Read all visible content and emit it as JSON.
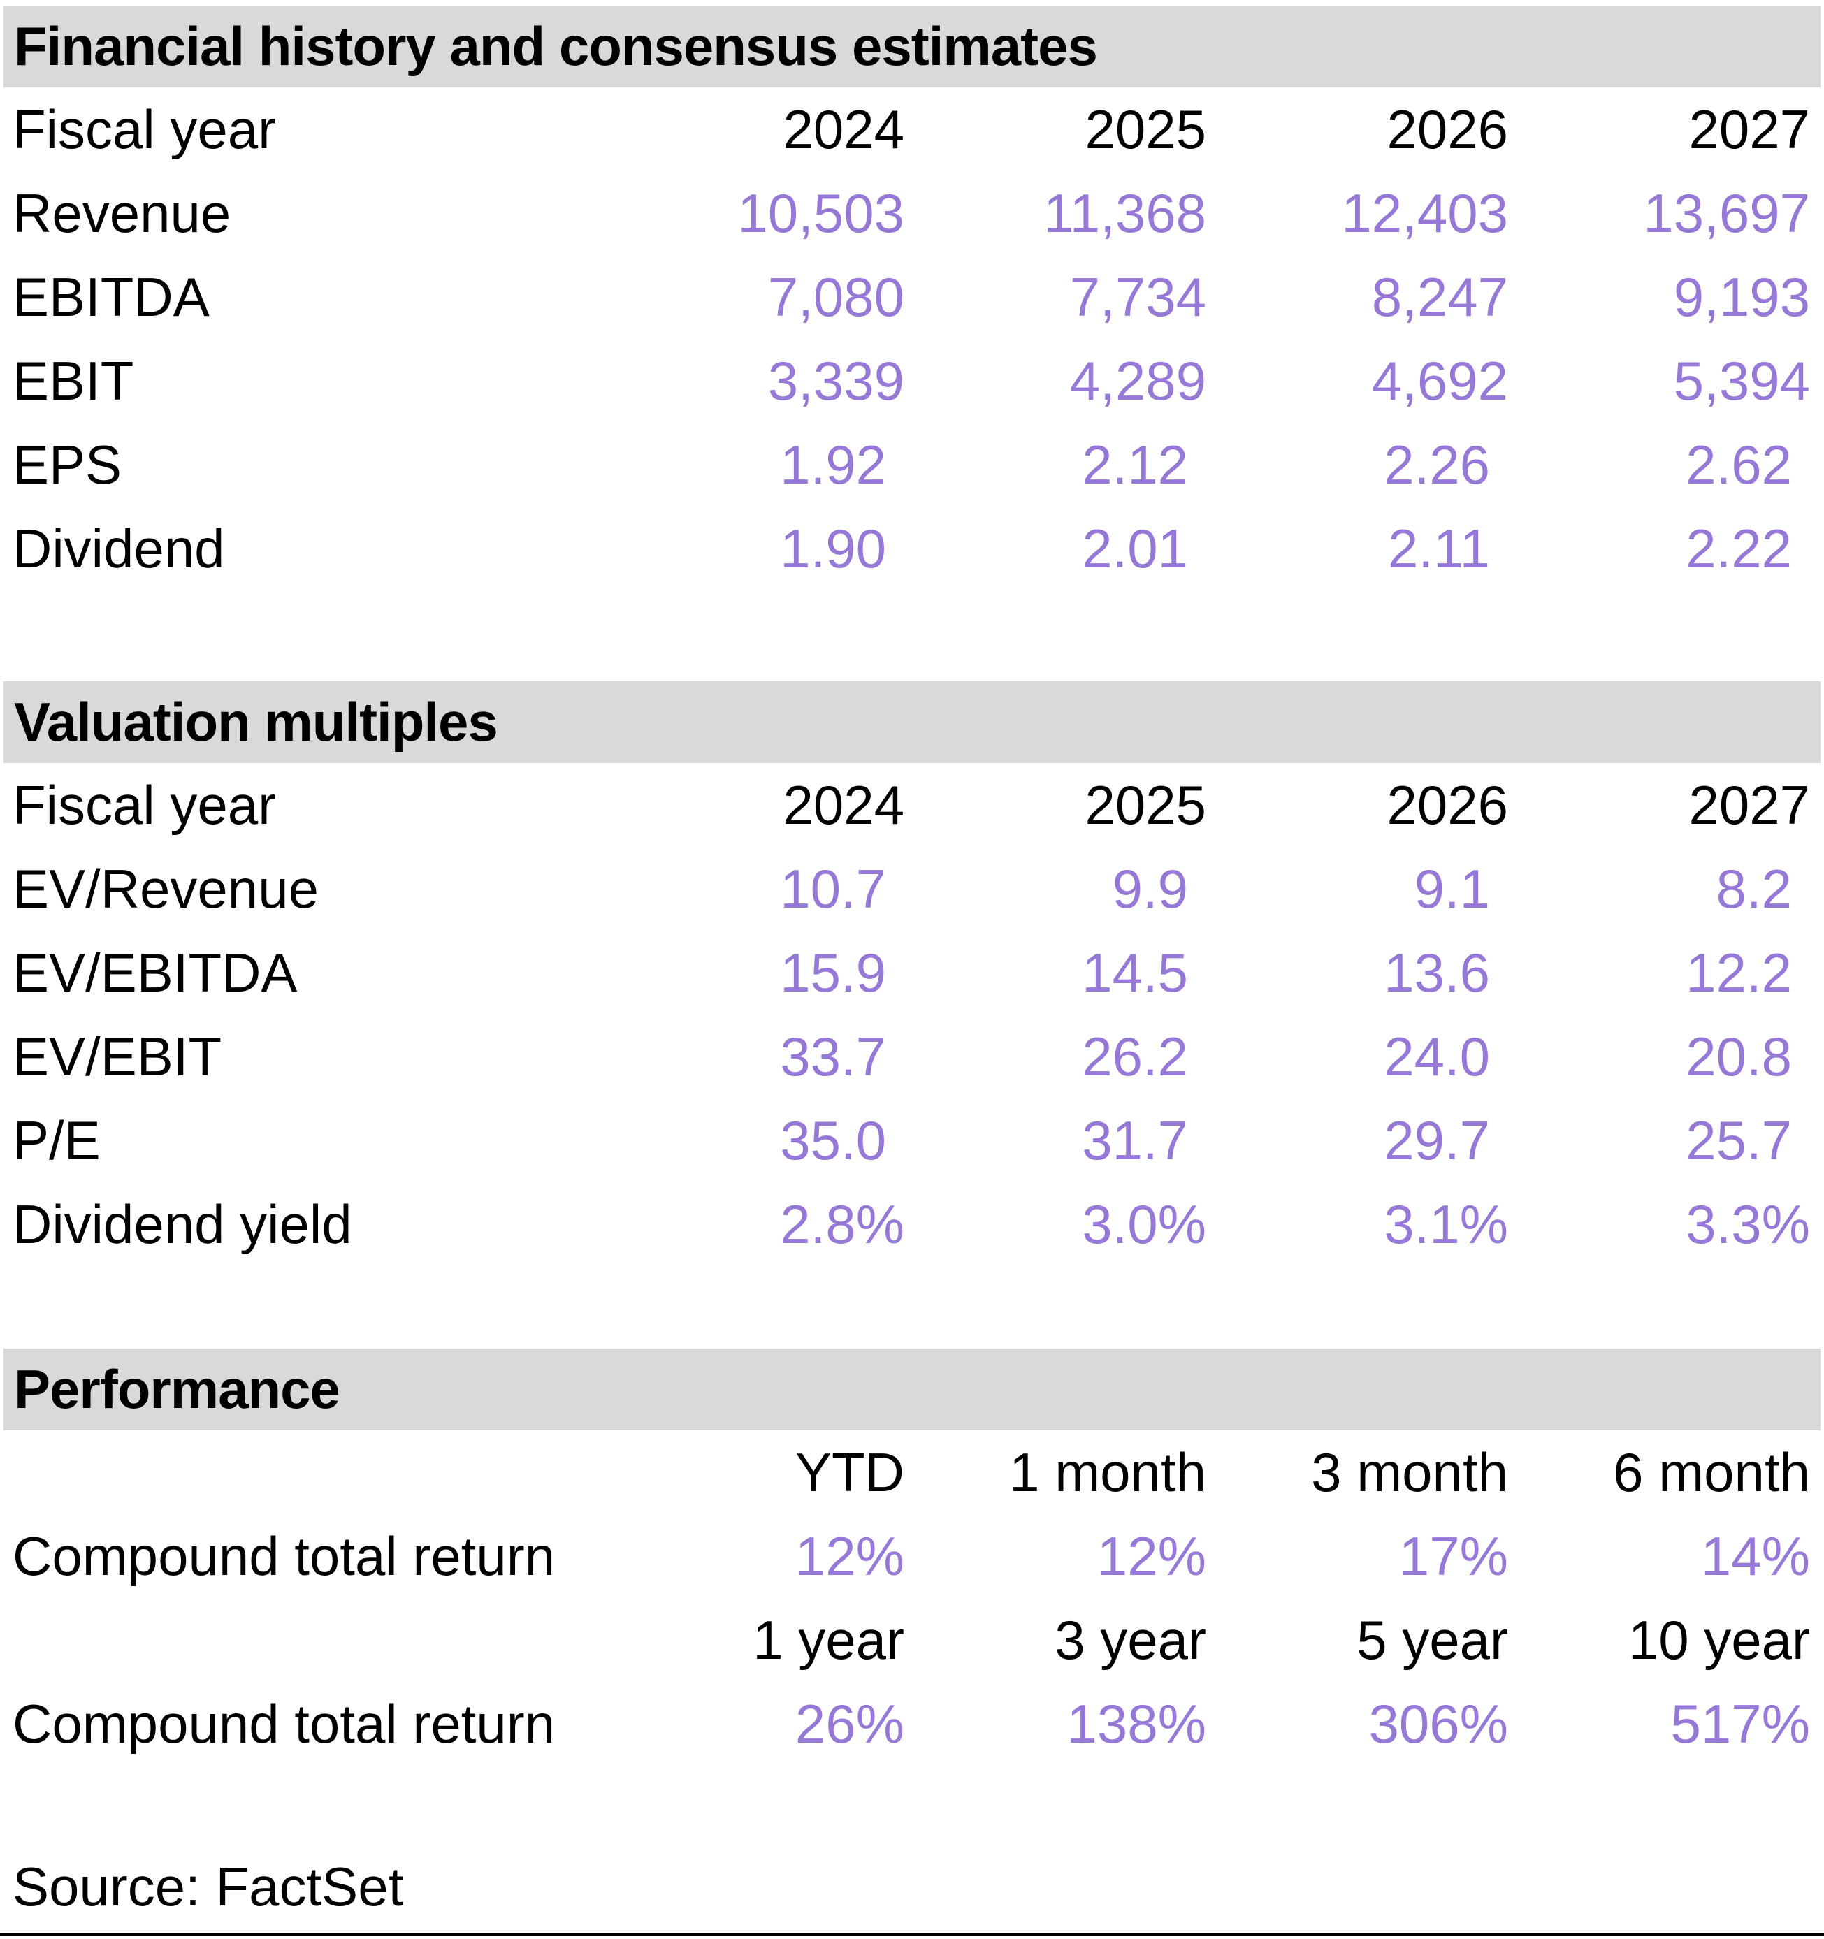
{
  "colors": {
    "accent_purple": "#9678D6",
    "section_header_bg": "#D9D9D9",
    "text_black": "#000000"
  },
  "sections": [
    {
      "title": "Financial history and consensus estimates",
      "header": {
        "label": "Fiscal year",
        "columns": [
          "2024",
          "2025",
          "2026",
          "2027"
        ]
      },
      "rows": [
        {
          "label": "Revenue",
          "values": [
            "10,503",
            "11,368",
            "12,403",
            "13,697"
          ]
        },
        {
          "label": "EBITDA",
          "values": [
            "7,080",
            "7,734",
            "8,247",
            "9,193"
          ]
        },
        {
          "label": "EBIT",
          "values": [
            "3,339",
            "4,289",
            "4,692",
            "5,394"
          ]
        },
        {
          "label": "EPS",
          "values": [
            "1.92",
            "2.12",
            "2.26",
            "2.62"
          ]
        },
        {
          "label": "Dividend",
          "values": [
            "1.90",
            "2.01",
            "2.11",
            "2.22"
          ]
        }
      ]
    },
    {
      "title": "Valuation multiples",
      "header": {
        "label": "Fiscal year",
        "columns": [
          "2024",
          "2025",
          "2026",
          "2027"
        ]
      },
      "rows": [
        {
          "label": "EV/Revenue",
          "values": [
            "10.7",
            "9.9",
            "9.1",
            "8.2"
          ]
        },
        {
          "label": "EV/EBITDA",
          "values": [
            "15.9",
            "14.5",
            "13.6",
            "12.2"
          ]
        },
        {
          "label": "EV/EBIT",
          "values": [
            "33.7",
            "26.2",
            "24.0",
            "20.8"
          ]
        },
        {
          "label": "P/E",
          "values": [
            "35.0",
            "31.7",
            "29.7",
            "25.7"
          ]
        },
        {
          "label": "Dividend yield",
          "values": [
            "2.8%",
            "3.0%",
            "3.1%",
            "3.3%"
          ]
        }
      ]
    },
    {
      "title": "Performance",
      "groups": [
        {
          "columns": [
            "YTD",
            "1 month",
            "3 month",
            "6 month"
          ],
          "row": {
            "label": "Compound total return",
            "values": [
              "12%",
              "12%",
              "17%",
              "14%"
            ]
          }
        },
        {
          "columns": [
            "1 year",
            "3 year",
            "5 year",
            "10 year"
          ],
          "row": {
            "label": "Compound total return",
            "values": [
              "26%",
              "138%",
              "306%",
              "517%"
            ]
          }
        }
      ]
    }
  ],
  "source_note": "Source: FactSet"
}
